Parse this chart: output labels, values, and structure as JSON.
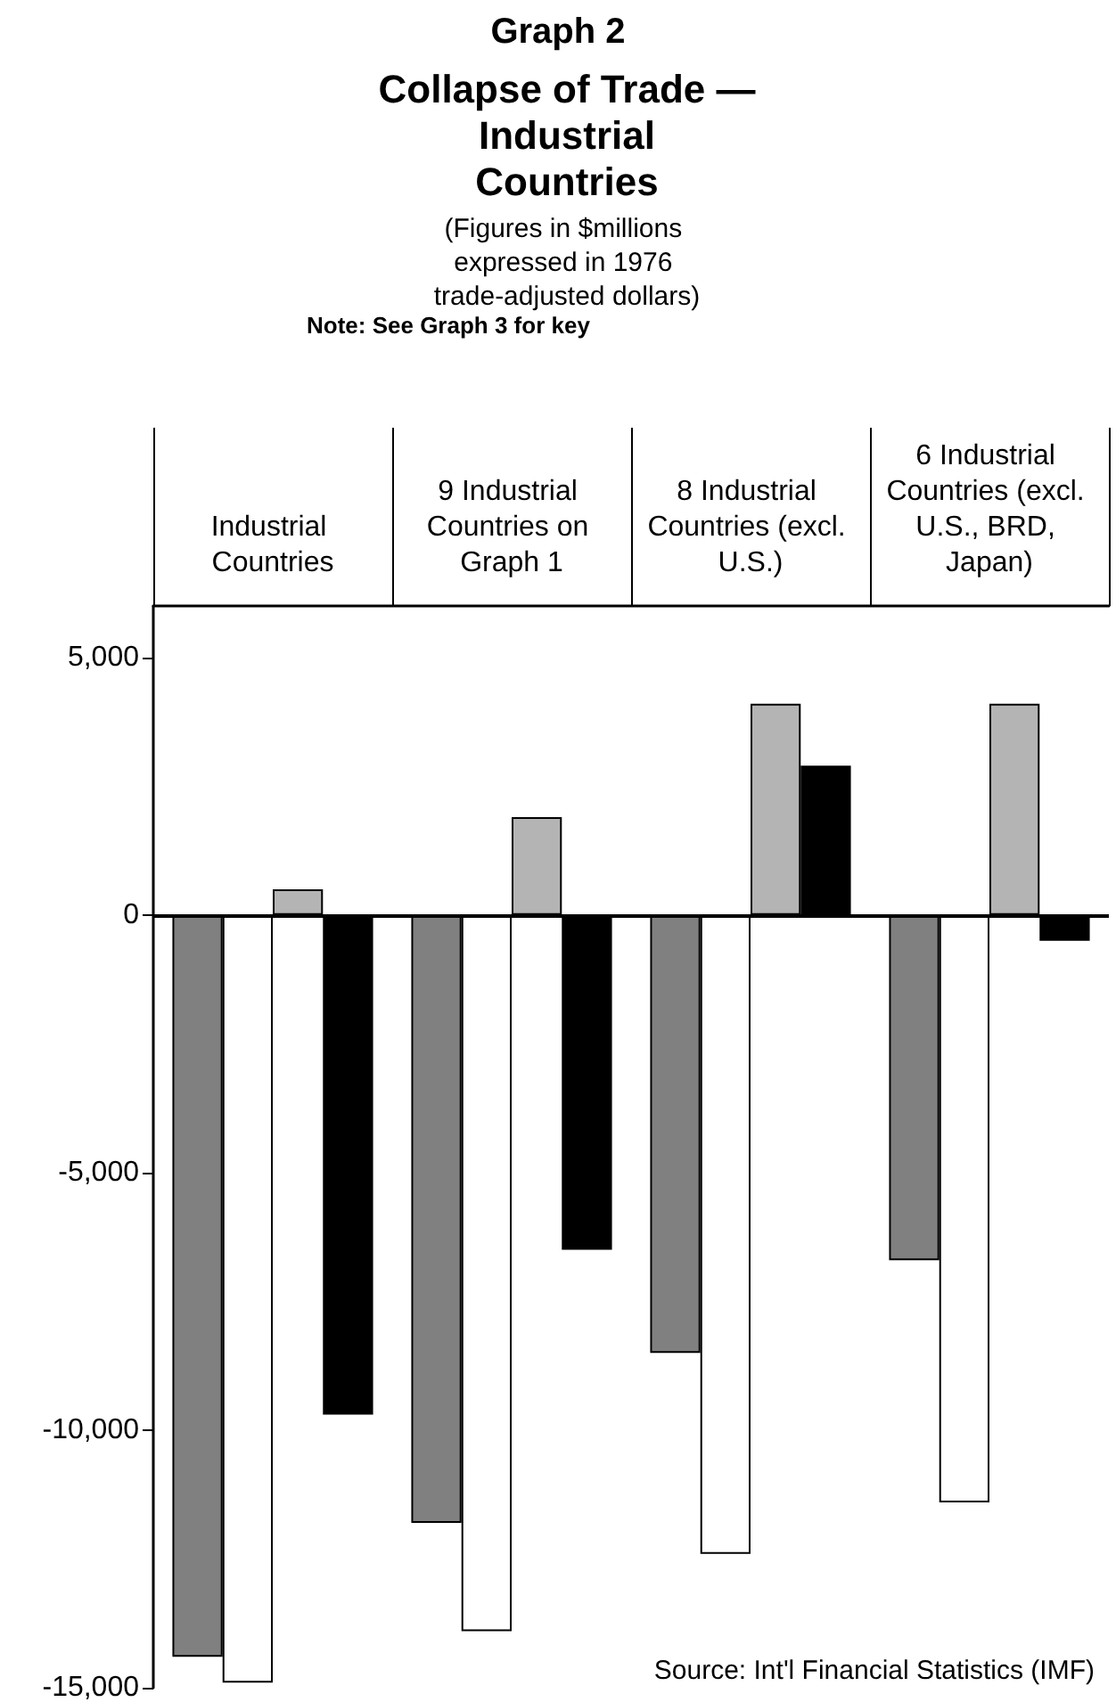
{
  "chart_data": {
    "type": "bar",
    "title": "Collapse of Trade — Industrial Countries",
    "subtitle": "(Figures in $millions expressed in 1976 trade-adjusted dollars)",
    "annotations": [
      "Graph 2",
      "Note: See Graph 3 for key",
      "Source: Int'l Financial Statistics (IMF)"
    ],
    "categories": [
      "Industrial Countries",
      "9 Industrial Countries on Graph 1",
      "8 Industrial Countries (excl. U.S.)",
      "6 Industrial Countries (excl. U.S., BRD, Japan)"
    ],
    "series": [
      {
        "color": "#808080",
        "values": [
          -14400,
          -11800,
          -8500,
          -6700
        ]
      },
      {
        "color": "#ffffff",
        "values": [
          -14900,
          -13900,
          -12400,
          -11400
        ]
      },
      {
        "color": "#b4b4b4",
        "values": [
          500,
          1900,
          4100,
          4100
        ]
      },
      {
        "color": "#000000",
        "values": [
          -9700,
          -6500,
          2900,
          -500
        ]
      }
    ],
    "ylim": [
      -15000,
      6000
    ],
    "yticks": [
      {
        "value": -15000,
        "label": "-15,000"
      },
      {
        "value": -10000,
        "label": "-10,000"
      },
      {
        "value": -5000,
        "label": "-5,000"
      },
      0,
      {
        "value": 5000,
        "label": "5,000"
      }
    ],
    "ref_lines": [
      {
        "axis": "y",
        "value": 0
      }
    ]
  }
}
